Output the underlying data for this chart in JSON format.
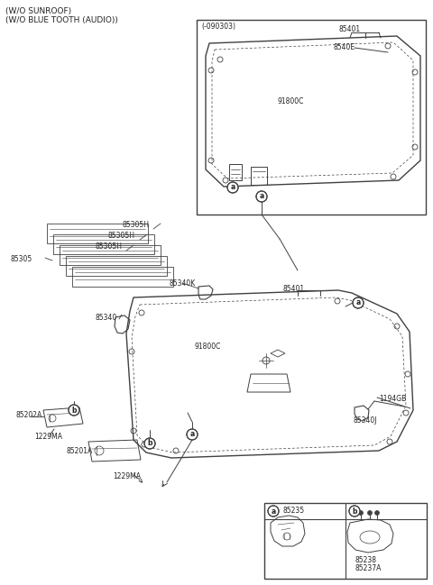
{
  "bg_color": "#ffffff",
  "lc": "#404040",
  "tc": "#222222",
  "fig_w": 4.8,
  "fig_h": 6.49,
  "dpi": 100,
  "title1": "(W/O SUNROOF)",
  "title2": "(W/O BLUE TOOTH (AUDIO))",
  "box1_label": "(-090303)",
  "parts": {
    "85401": "85401",
    "8540E": "8540E",
    "91800C": "91800C",
    "85305H": "85305H",
    "85305": "85305",
    "85340K": "85340K",
    "85340": "85340",
    "1194GB": "1194GB",
    "85340J": "85340J",
    "85202A": "85202A",
    "1229MA": "1229MA",
    "85201A": "85201A",
    "85235": "85235",
    "85238": "85238",
    "85237A": "85237A"
  }
}
